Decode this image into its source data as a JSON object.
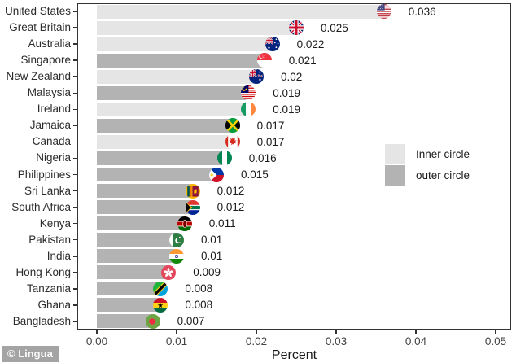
{
  "chart_data": {
    "type": "bar",
    "orientation": "horizontal",
    "title": "",
    "xlabel": "Percent",
    "ylabel": "",
    "x_ticks": [
      "0.00",
      "0.01",
      "0.02",
      "0.03",
      "0.04",
      "0.05"
    ],
    "xlim": [
      0,
      0.0545
    ],
    "grid": false,
    "legend_position": "right-center",
    "legend": [
      {
        "label": "Inner circle",
        "group": "inner",
        "color": "#e5e5e5"
      },
      {
        "label": "outer circle",
        "group": "outer",
        "color": "#b3b3b3"
      }
    ],
    "rows": [
      {
        "country": "United States",
        "value": 0.036,
        "label": "0.036",
        "group": "inner",
        "flag": "united-states"
      },
      {
        "country": "Great Britain",
        "value": 0.025,
        "label": "0.025",
        "group": "inner",
        "flag": "great-britain"
      },
      {
        "country": "Australia",
        "value": 0.022,
        "label": "0.022",
        "group": "inner",
        "flag": "australia"
      },
      {
        "country": "Singapore",
        "value": 0.021,
        "label": "0.021",
        "group": "outer",
        "flag": "singapore"
      },
      {
        "country": "New Zealand",
        "value": 0.02,
        "label": "0.02",
        "group": "inner",
        "flag": "new-zealand"
      },
      {
        "country": "Malaysia",
        "value": 0.019,
        "label": "0.019",
        "group": "outer",
        "flag": "malaysia"
      },
      {
        "country": "Ireland",
        "value": 0.019,
        "label": "0.019",
        "group": "inner",
        "flag": "ireland"
      },
      {
        "country": "Jamaica",
        "value": 0.017,
        "label": "0.017",
        "group": "outer",
        "flag": "jamaica"
      },
      {
        "country": "Canada",
        "value": 0.017,
        "label": "0.017",
        "group": "inner",
        "flag": "canada"
      },
      {
        "country": "Nigeria",
        "value": 0.016,
        "label": "0.016",
        "group": "outer",
        "flag": "nigeria"
      },
      {
        "country": "Philippines",
        "value": 0.015,
        "label": "0.015",
        "group": "outer",
        "flag": "philippines"
      },
      {
        "country": "Sri Lanka",
        "value": 0.012,
        "label": "0.012",
        "group": "outer",
        "flag": "sri-lanka"
      },
      {
        "country": "South Africa",
        "value": 0.012,
        "label": "0.012",
        "group": "outer",
        "flag": "south-africa"
      },
      {
        "country": "Kenya",
        "value": 0.011,
        "label": "0.011",
        "group": "outer",
        "flag": "kenya"
      },
      {
        "country": "Pakistan",
        "value": 0.01,
        "label": "0.01",
        "group": "outer",
        "flag": "pakistan"
      },
      {
        "country": "India",
        "value": 0.01,
        "label": "0.01",
        "group": "outer",
        "flag": "india"
      },
      {
        "country": "Hong Kong",
        "value": 0.009,
        "label": "0.009",
        "group": "outer",
        "flag": "hong-kong"
      },
      {
        "country": "Tanzania",
        "value": 0.008,
        "label": "0.008",
        "group": "outer",
        "flag": "tanzania"
      },
      {
        "country": "Ghana",
        "value": 0.008,
        "label": "0.008",
        "group": "outer",
        "flag": "ghana"
      },
      {
        "country": "Bangladesh",
        "value": 0.007,
        "label": "0.007",
        "group": "outer",
        "flag": "bangladesh"
      }
    ]
  },
  "colors": {
    "inner_bar": "#e5e5e5",
    "outer_bar": "#b3b3b3",
    "axis_text": "#404040",
    "plot_border": "#333333"
  },
  "watermark": "© Lingua"
}
